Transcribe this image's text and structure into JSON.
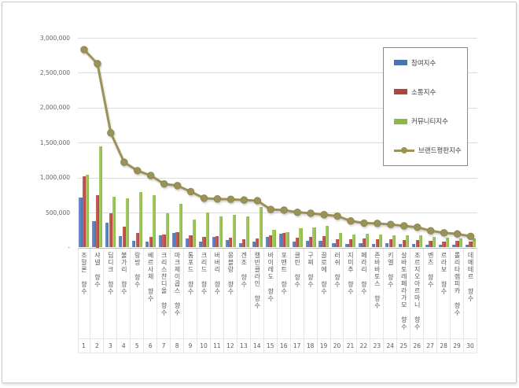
{
  "chart_data": {
    "type": "bar",
    "subtype": "grouped-bars-with-line-overlay",
    "title": "",
    "xlabel": "",
    "ylabel": "",
    "ylim": [
      0,
      3000000
    ],
    "grid": true,
    "legend_position": "top-right",
    "y_ticks": [
      "3,000,000",
      "2,500,000",
      "2,000,000",
      "1,500,000",
      "1,000,000",
      "500,000",
      "-"
    ],
    "y_tick_values": [
      3000000,
      2500000,
      2000000,
      1500000,
      1000000,
      500000,
      0
    ],
    "x_tick_numbers": [
      "1",
      "2",
      "3",
      "4",
      "5",
      "6",
      "7",
      "8",
      "9",
      "10",
      "11",
      "12",
      "13",
      "14",
      "15",
      "16",
      "17",
      "18",
      "19",
      "20",
      "21",
      "22",
      "23",
      "24",
      "25",
      "26",
      "27",
      "28",
      "29",
      "30"
    ],
    "categories": [
      "조말론 향수",
      "샤넬 향수",
      "딥디크 향수",
      "불가리 향수",
      "랑방 향수",
      "베르사체 향수",
      "크리스챤디올 향수",
      "마크제이콥스 향수",
      "톰포드 향수",
      "크리드 향수",
      "버버리 향수",
      "몽블랑 향수",
      "겐조 향수",
      "캘빈클라인 향수",
      "바이레도 향수",
      "포맨트 향수",
      "클린 향수",
      "구찌 향수",
      "끌로에 향수",
      "러쉬 향수",
      "지미추 향수",
      "페라리 향수",
      "존바바토스 향수",
      "키엘 향수",
      "살바토레페라가모 향수",
      "조르지오아르마니 향수",
      "벤츠 향수",
      "르라보 향수",
      "롤리타렘피카 향수",
      "데메테르 향수"
    ],
    "series": [
      {
        "name": "참여지수",
        "type": "bar",
        "color": "#4972b7",
        "values": [
          710000,
          380000,
          360000,
          160000,
          95000,
          85000,
          175000,
          210000,
          130000,
          90000,
          150000,
          110000,
          60000,
          90000,
          150000,
          195000,
          90000,
          100000,
          95000,
          60000,
          50000,
          60000,
          55000,
          60000,
          50000,
          55000,
          45000,
          45000,
          40000,
          35000
        ]
      },
      {
        "name": "소통지수",
        "type": "bar",
        "color": "#b4423f",
        "values": [
          1020000,
          750000,
          490000,
          300000,
          210000,
          150000,
          190000,
          225000,
          170000,
          150000,
          165000,
          140000,
          120000,
          130000,
          170000,
          205000,
          140000,
          155000,
          165000,
          120000,
          115000,
          130000,
          120000,
          115000,
          110000,
          105000,
          95000,
          90000,
          95000,
          80000
        ]
      },
      {
        "name": "커뮤니티지수",
        "type": "bar",
        "color": "#8cb84a",
        "values": [
          1040000,
          1450000,
          730000,
          700000,
          790000,
          745000,
          490000,
          630000,
          400000,
          500000,
          450000,
          465000,
          450000,
          580000,
          250000,
          215000,
          280000,
          290000,
          305000,
          210000,
          185000,
          200000,
          185000,
          180000,
          175000,
          170000,
          150000,
          140000,
          135000,
          130000
        ]
      },
      {
        "name": "브랜드평판지수",
        "type": "line",
        "color": "#9a9256",
        "values": [
          2830000,
          2630000,
          1640000,
          1220000,
          1100000,
          1030000,
          910000,
          885000,
          800000,
          705000,
          695000,
          690000,
          680000,
          670000,
          545000,
          535000,
          505000,
          490000,
          470000,
          450000,
          380000,
          350000,
          345000,
          330000,
          310000,
          290000,
          240000,
          210000,
          195000,
          160000
        ]
      }
    ]
  }
}
